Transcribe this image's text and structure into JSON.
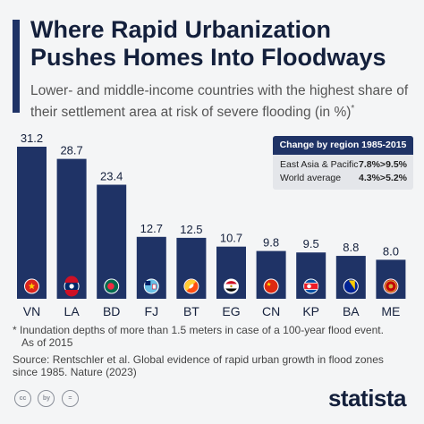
{
  "title": "Where Rapid Urbanization Pushes Homes Into Floodways",
  "subtitle": "Lower- and middle-income countries with the highest share of their settlement area at risk of severe flooding (in %)",
  "subtitle_marker": "*",
  "region_box": {
    "title": "Change by region 1985-2015",
    "rows": [
      {
        "label": "East Asia & Pacific",
        "value": "7.8%>9.5%"
      },
      {
        "label": "World average",
        "value": "4.3%>5.2%"
      }
    ]
  },
  "footnote_line1": "* Inundation depths of more than 1.5 meters in case of a 100-year flood event.",
  "footnote_line2": "As of 2015",
  "source_line1": "Source: Rentschler et al. Global evidence of rapid urban growth in flood zones",
  "source_line2": "since 1985. Nature (2023)",
  "logo": "statista",
  "cc_icons": [
    "cc",
    "by",
    "="
  ],
  "colors": {
    "bar": "#1f3366",
    "text": "#14203c"
  },
  "chart_data": {
    "type": "bar",
    "categories": [
      "VN",
      "LA",
      "BD",
      "FJ",
      "BT",
      "EG",
      "CN",
      "KP",
      "BA",
      "ME"
    ],
    "values": [
      31.2,
      28.7,
      23.4,
      12.7,
      12.5,
      10.7,
      9.8,
      9.5,
      8.8,
      8.0
    ],
    "value_labels": [
      "31.2",
      "28.7",
      "23.4",
      "12.7",
      "12.5",
      "10.7",
      "9.8",
      "9.5",
      "8.8",
      "8.0"
    ],
    "flags": [
      "vietnam-flag",
      "laos-flag",
      "bangladesh-flag",
      "fiji-flag",
      "bhutan-flag",
      "egypt-flag",
      "china-flag",
      "north-korea-flag",
      "bosnia-flag",
      "montenegro-flag"
    ],
    "ylim": [
      0,
      31.2
    ],
    "grid": false,
    "legend": "none"
  }
}
